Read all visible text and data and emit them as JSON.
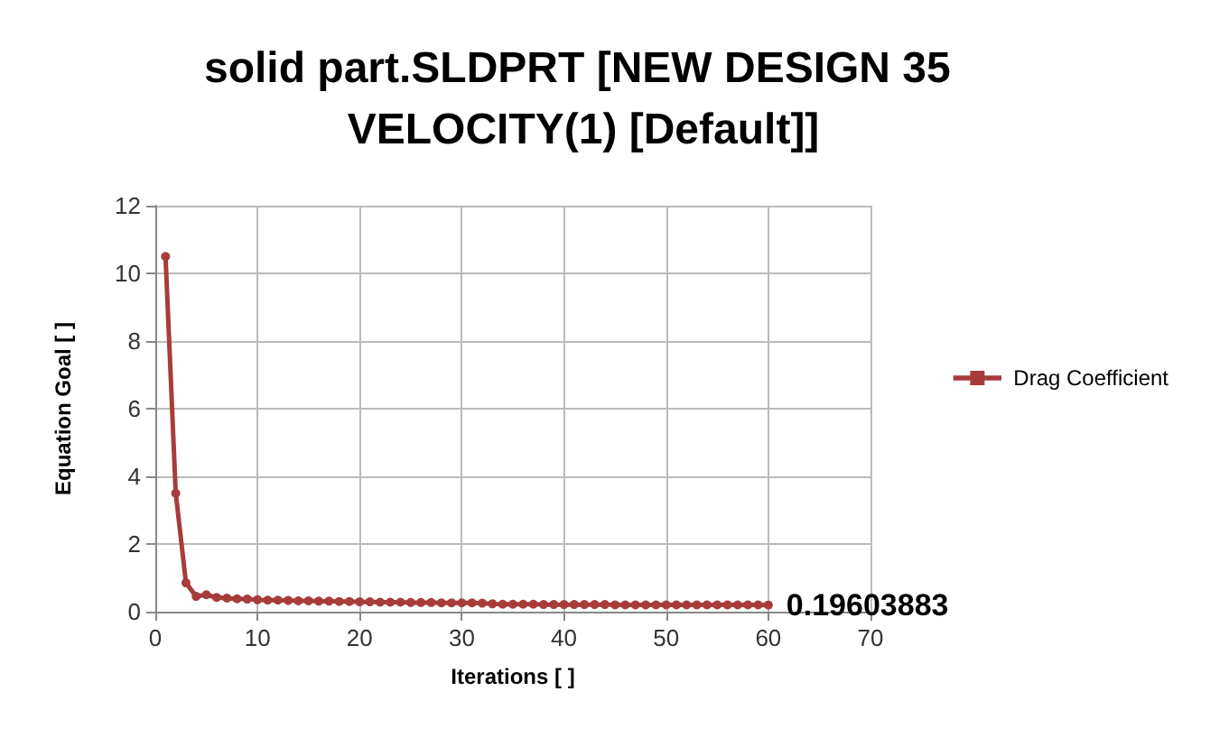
{
  "chart_data": {
    "type": "line",
    "title": "solid part.SLDPRT [NEW DESIGN 35 VELOCITY(1) [Default]]",
    "xlabel": "Iterations [ ]",
    "ylabel": "Equation Goal [ ]",
    "x": [
      1,
      2,
      3,
      4,
      5,
      6,
      7,
      8,
      9,
      10,
      11,
      12,
      13,
      14,
      15,
      16,
      17,
      18,
      19,
      20,
      21,
      22,
      23,
      24,
      25,
      26,
      27,
      28,
      29,
      30,
      31,
      32,
      33,
      34,
      35,
      36,
      37,
      38,
      39,
      40,
      41,
      42,
      43,
      44,
      45,
      46,
      47,
      48,
      49,
      50,
      51,
      52,
      53,
      54,
      55,
      56,
      57,
      58,
      59,
      60
    ],
    "series": [
      {
        "name": "Drag Coefficient",
        "color": "#a83c3a",
        "values": [
          10.5,
          3.5,
          0.85,
          0.45,
          0.5,
          0.42,
          0.4,
          0.38,
          0.37,
          0.35,
          0.34,
          0.34,
          0.33,
          0.32,
          0.32,
          0.31,
          0.31,
          0.3,
          0.3,
          0.29,
          0.29,
          0.28,
          0.28,
          0.28,
          0.27,
          0.27,
          0.27,
          0.26,
          0.26,
          0.26,
          0.26,
          0.25,
          0.23,
          0.22,
          0.22,
          0.22,
          0.22,
          0.21,
          0.21,
          0.21,
          0.21,
          0.21,
          0.21,
          0.21,
          0.2,
          0.2,
          0.2,
          0.2,
          0.2,
          0.2,
          0.2,
          0.2,
          0.2,
          0.2,
          0.2,
          0.2,
          0.2,
          0.2,
          0.2,
          0.19603883
        ]
      }
    ],
    "annotations": [
      {
        "text": "0.19603883",
        "x": 60,
        "y": 0.19603883
      }
    ],
    "xlim": [
      0,
      70
    ],
    "xticks": [
      0,
      10,
      20,
      30,
      40,
      50,
      60,
      70
    ],
    "ylim": [
      0,
      12
    ],
    "yticks": [
      0,
      2,
      4,
      6,
      8,
      10,
      12
    ],
    "grid": true,
    "legend": "right",
    "marker": "circle",
    "line_style": "solid"
  }
}
